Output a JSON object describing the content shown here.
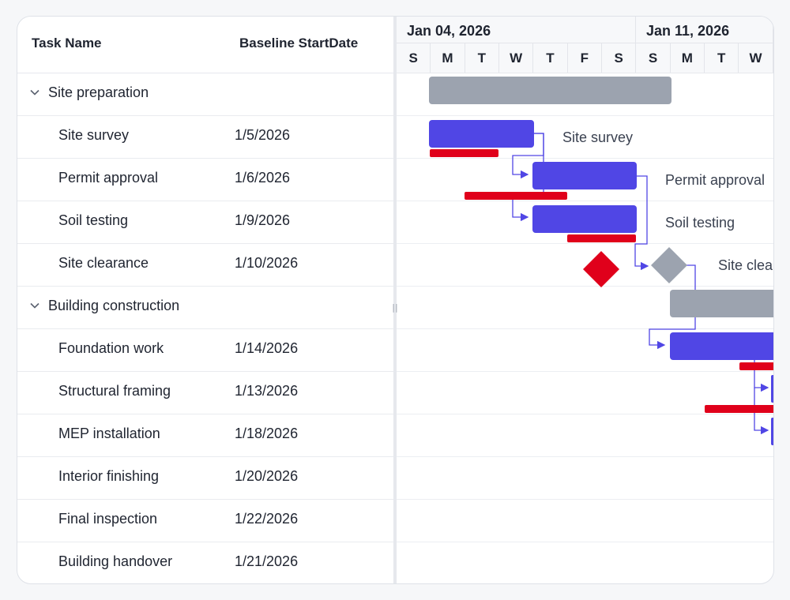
{
  "grid": {
    "columns": {
      "task_name": "Task Name",
      "baseline_start": "Baseline StartDate"
    },
    "rows": [
      {
        "name": "Site preparation",
        "baseline": "",
        "parent": true
      },
      {
        "name": "Site survey",
        "baseline": "1/5/2026",
        "parent": false
      },
      {
        "name": "Permit approval",
        "baseline": "1/6/2026",
        "parent": false
      },
      {
        "name": "Soil testing",
        "baseline": "1/9/2026",
        "parent": false
      },
      {
        "name": "Site clearance",
        "baseline": "1/10/2026",
        "parent": false
      },
      {
        "name": "Building construction",
        "baseline": "",
        "parent": true
      },
      {
        "name": "Foundation work",
        "baseline": "1/14/2026",
        "parent": false
      },
      {
        "name": "Structural framing",
        "baseline": "1/13/2026",
        "parent": false
      },
      {
        "name": "MEP installation",
        "baseline": "1/18/2026",
        "parent": false
      },
      {
        "name": "Interior finishing",
        "baseline": "1/20/2026",
        "parent": false
      },
      {
        "name": "Final inspection",
        "baseline": "1/22/2026",
        "parent": false
      },
      {
        "name": "Building handover",
        "baseline": "1/21/2026",
        "parent": false
      }
    ]
  },
  "timeline": {
    "weeks": [
      "Jan 04, 2026",
      "Jan 11, 2026"
    ],
    "days": [
      "S",
      "M",
      "T",
      "W",
      "T",
      "F",
      "S",
      "S",
      "M",
      "T",
      "W"
    ]
  },
  "chart": {
    "labels": {
      "site_survey": "Site survey",
      "permit_approval": "Permit approval",
      "soil_testing": "Soil testing",
      "site_clearance": "Site clea"
    },
    "colors": {
      "task_bar": "#5046e5",
      "parent_bar": "#9ca3af",
      "baseline": "#e0001b",
      "connector": "#5046e5"
    }
  }
}
